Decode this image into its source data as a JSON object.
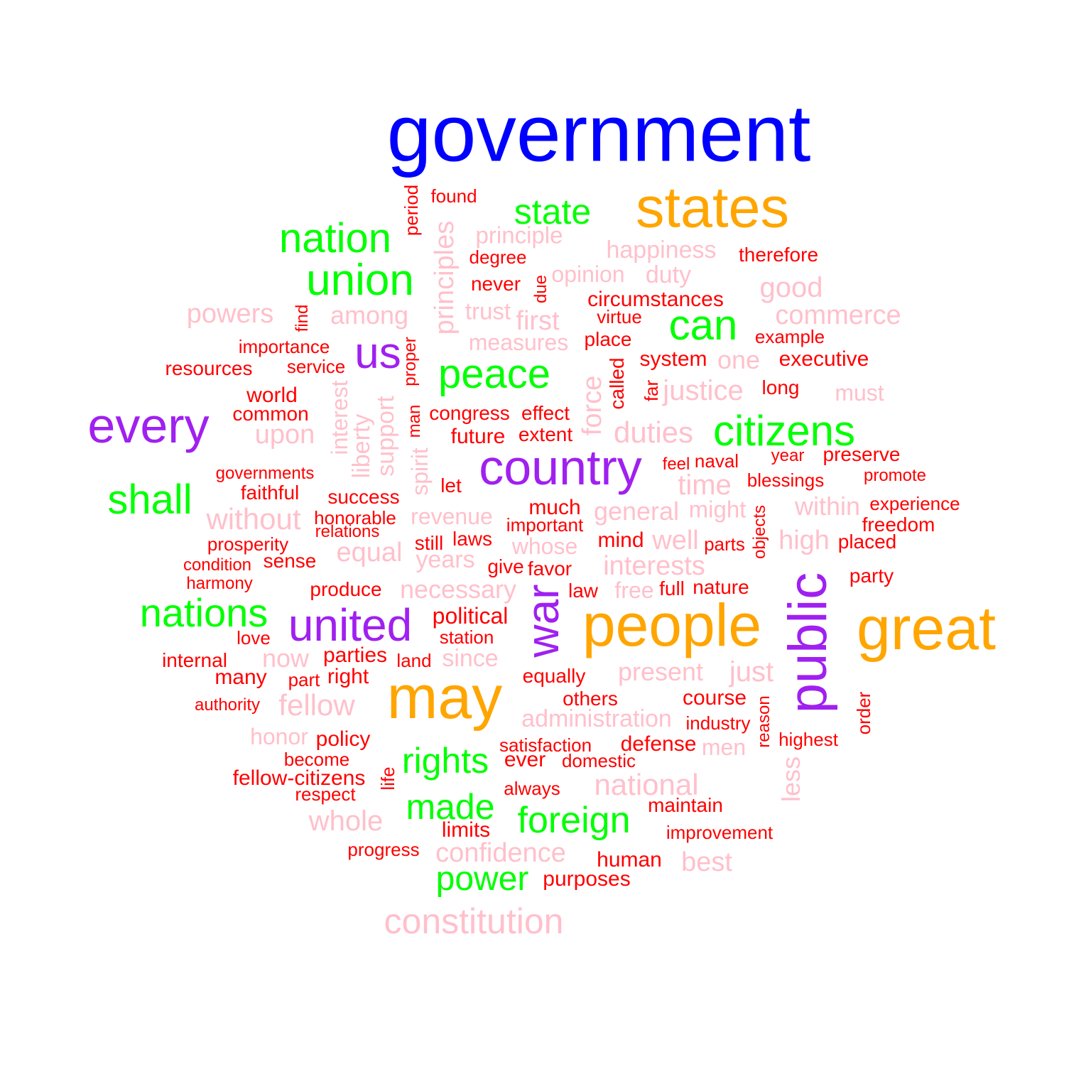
{
  "palette": {
    "blue": "#0000ff",
    "orange": "#ffa500",
    "green": "#00ff00",
    "purple": "#a020f0",
    "pink": "#ffc0cb",
    "red": "#ff0000"
  },
  "words": [
    {
      "text": "government",
      "color": "blue"
    },
    {
      "text": "states",
      "color": "orange"
    },
    {
      "text": "people",
      "color": "orange"
    },
    {
      "text": "great",
      "color": "orange"
    },
    {
      "text": "may",
      "color": "orange"
    },
    {
      "text": "state",
      "color": "green"
    },
    {
      "text": "nation",
      "color": "green"
    },
    {
      "text": "union",
      "color": "green"
    },
    {
      "text": "can",
      "color": "green"
    },
    {
      "text": "peace",
      "color": "green"
    },
    {
      "text": "citizens",
      "color": "green"
    },
    {
      "text": "shall",
      "color": "green"
    },
    {
      "text": "nations",
      "color": "green"
    },
    {
      "text": "rights",
      "color": "green"
    },
    {
      "text": "made",
      "color": "green"
    },
    {
      "text": "foreign",
      "color": "green"
    },
    {
      "text": "power",
      "color": "green"
    },
    {
      "text": "us",
      "color": "purple"
    },
    {
      "text": "every",
      "color": "purple"
    },
    {
      "text": "country",
      "color": "purple"
    },
    {
      "text": "united",
      "color": "purple"
    },
    {
      "text": "war",
      "color": "purple"
    },
    {
      "text": "public",
      "color": "purple"
    },
    {
      "text": "principle",
      "color": "pink"
    },
    {
      "text": "happiness",
      "color": "pink"
    },
    {
      "text": "opinion",
      "color": "pink"
    },
    {
      "text": "duty",
      "color": "pink"
    },
    {
      "text": "good",
      "color": "pink"
    },
    {
      "text": "powers",
      "color": "pink"
    },
    {
      "text": "among",
      "color": "pink"
    },
    {
      "text": "trust",
      "color": "pink"
    },
    {
      "text": "first",
      "color": "pink"
    },
    {
      "text": "commerce",
      "color": "pink"
    },
    {
      "text": "measures",
      "color": "pink"
    },
    {
      "text": "one",
      "color": "pink"
    },
    {
      "text": "justice",
      "color": "pink"
    },
    {
      "text": "must",
      "color": "pink"
    },
    {
      "text": "upon",
      "color": "pink"
    },
    {
      "text": "duties",
      "color": "pink"
    },
    {
      "text": "time",
      "color": "pink"
    },
    {
      "text": "without",
      "color": "pink"
    },
    {
      "text": "revenue",
      "color": "pink"
    },
    {
      "text": "general",
      "color": "pink"
    },
    {
      "text": "might",
      "color": "pink"
    },
    {
      "text": "within",
      "color": "pink"
    },
    {
      "text": "equal",
      "color": "pink"
    },
    {
      "text": "years",
      "color": "pink"
    },
    {
      "text": "whose",
      "color": "pink"
    },
    {
      "text": "well",
      "color": "pink"
    },
    {
      "text": "high",
      "color": "pink"
    },
    {
      "text": "interests",
      "color": "pink"
    },
    {
      "text": "necessary",
      "color": "pink"
    },
    {
      "text": "free",
      "color": "pink"
    },
    {
      "text": "now",
      "color": "pink"
    },
    {
      "text": "since",
      "color": "pink"
    },
    {
      "text": "present",
      "color": "pink"
    },
    {
      "text": "just",
      "color": "pink"
    },
    {
      "text": "fellow",
      "color": "pink"
    },
    {
      "text": "administration",
      "color": "pink"
    },
    {
      "text": "honor",
      "color": "pink"
    },
    {
      "text": "men",
      "color": "pink"
    },
    {
      "text": "national",
      "color": "pink"
    },
    {
      "text": "whole",
      "color": "pink"
    },
    {
      "text": "confidence",
      "color": "pink"
    },
    {
      "text": "best",
      "color": "pink"
    },
    {
      "text": "constitution",
      "color": "pink"
    },
    {
      "text": "principles",
      "color": "pink"
    },
    {
      "text": "interest",
      "color": "pink"
    },
    {
      "text": "liberty",
      "color": "pink"
    },
    {
      "text": "support",
      "color": "pink"
    },
    {
      "text": "spirit",
      "color": "pink"
    },
    {
      "text": "force",
      "color": "pink"
    },
    {
      "text": "less",
      "color": "pink"
    },
    {
      "text": "found",
      "color": "red"
    },
    {
      "text": "degree",
      "color": "red"
    },
    {
      "text": "therefore",
      "color": "red"
    },
    {
      "text": "never",
      "color": "red"
    },
    {
      "text": "circumstances",
      "color": "red"
    },
    {
      "text": "virtue",
      "color": "red"
    },
    {
      "text": "importance",
      "color": "red"
    },
    {
      "text": "place",
      "color": "red"
    },
    {
      "text": "example",
      "color": "red"
    },
    {
      "text": "resources",
      "color": "red"
    },
    {
      "text": "service",
      "color": "red"
    },
    {
      "text": "system",
      "color": "red"
    },
    {
      "text": "executive",
      "color": "red"
    },
    {
      "text": "world",
      "color": "red"
    },
    {
      "text": "long",
      "color": "red"
    },
    {
      "text": "common",
      "color": "red"
    },
    {
      "text": "congress",
      "color": "red"
    },
    {
      "text": "effect",
      "color": "red"
    },
    {
      "text": "future",
      "color": "red"
    },
    {
      "text": "extent",
      "color": "red"
    },
    {
      "text": "feel",
      "color": "red"
    },
    {
      "text": "naval",
      "color": "red"
    },
    {
      "text": "year",
      "color": "red"
    },
    {
      "text": "preserve",
      "color": "red"
    },
    {
      "text": "governments",
      "color": "red"
    },
    {
      "text": "let",
      "color": "red"
    },
    {
      "text": "blessings",
      "color": "red"
    },
    {
      "text": "promote",
      "color": "red"
    },
    {
      "text": "faithful",
      "color": "red"
    },
    {
      "text": "success",
      "color": "red"
    },
    {
      "text": "honorable",
      "color": "red"
    },
    {
      "text": "much",
      "color": "red"
    },
    {
      "text": "experience",
      "color": "red"
    },
    {
      "text": "relations",
      "color": "red"
    },
    {
      "text": "important",
      "color": "red"
    },
    {
      "text": "freedom",
      "color": "red"
    },
    {
      "text": "prosperity",
      "color": "red"
    },
    {
      "text": "still",
      "color": "red"
    },
    {
      "text": "laws",
      "color": "red"
    },
    {
      "text": "mind",
      "color": "red"
    },
    {
      "text": "parts",
      "color": "red"
    },
    {
      "text": "placed",
      "color": "red"
    },
    {
      "text": "condition",
      "color": "red"
    },
    {
      "text": "sense",
      "color": "red"
    },
    {
      "text": "give",
      "color": "red"
    },
    {
      "text": "favor",
      "color": "red"
    },
    {
      "text": "party",
      "color": "red"
    },
    {
      "text": "harmony",
      "color": "red"
    },
    {
      "text": "produce",
      "color": "red"
    },
    {
      "text": "law",
      "color": "red"
    },
    {
      "text": "full",
      "color": "red"
    },
    {
      "text": "nature",
      "color": "red"
    },
    {
      "text": "political",
      "color": "red"
    },
    {
      "text": "love",
      "color": "red"
    },
    {
      "text": "station",
      "color": "red"
    },
    {
      "text": "internal",
      "color": "red"
    },
    {
      "text": "parties",
      "color": "red"
    },
    {
      "text": "land",
      "color": "red"
    },
    {
      "text": "many",
      "color": "red"
    },
    {
      "text": "part",
      "color": "red"
    },
    {
      "text": "right",
      "color": "red"
    },
    {
      "text": "equally",
      "color": "red"
    },
    {
      "text": "others",
      "color": "red"
    },
    {
      "text": "course",
      "color": "red"
    },
    {
      "text": "authority",
      "color": "red"
    },
    {
      "text": "industry",
      "color": "red"
    },
    {
      "text": "policy",
      "color": "red"
    },
    {
      "text": "satisfaction",
      "color": "red"
    },
    {
      "text": "defense",
      "color": "red"
    },
    {
      "text": "highest",
      "color": "red"
    },
    {
      "text": "become",
      "color": "red"
    },
    {
      "text": "ever",
      "color": "red"
    },
    {
      "text": "domestic",
      "color": "red"
    },
    {
      "text": "fellow-citizens",
      "color": "red"
    },
    {
      "text": "respect",
      "color": "red"
    },
    {
      "text": "always",
      "color": "red"
    },
    {
      "text": "maintain",
      "color": "red"
    },
    {
      "text": "limits",
      "color": "red"
    },
    {
      "text": "improvement",
      "color": "red"
    },
    {
      "text": "progress",
      "color": "red"
    },
    {
      "text": "human",
      "color": "red"
    },
    {
      "text": "purposes",
      "color": "red"
    },
    {
      "text": "period",
      "color": "red"
    },
    {
      "text": "due",
      "color": "red"
    },
    {
      "text": "find",
      "color": "red"
    },
    {
      "text": "proper",
      "color": "red"
    },
    {
      "text": "man",
      "color": "red"
    },
    {
      "text": "called",
      "color": "red"
    },
    {
      "text": "far",
      "color": "red"
    },
    {
      "text": "objects",
      "color": "red"
    },
    {
      "text": "reason",
      "color": "red"
    },
    {
      "text": "order",
      "color": "red"
    },
    {
      "text": "life",
      "color": "red"
    }
  ]
}
